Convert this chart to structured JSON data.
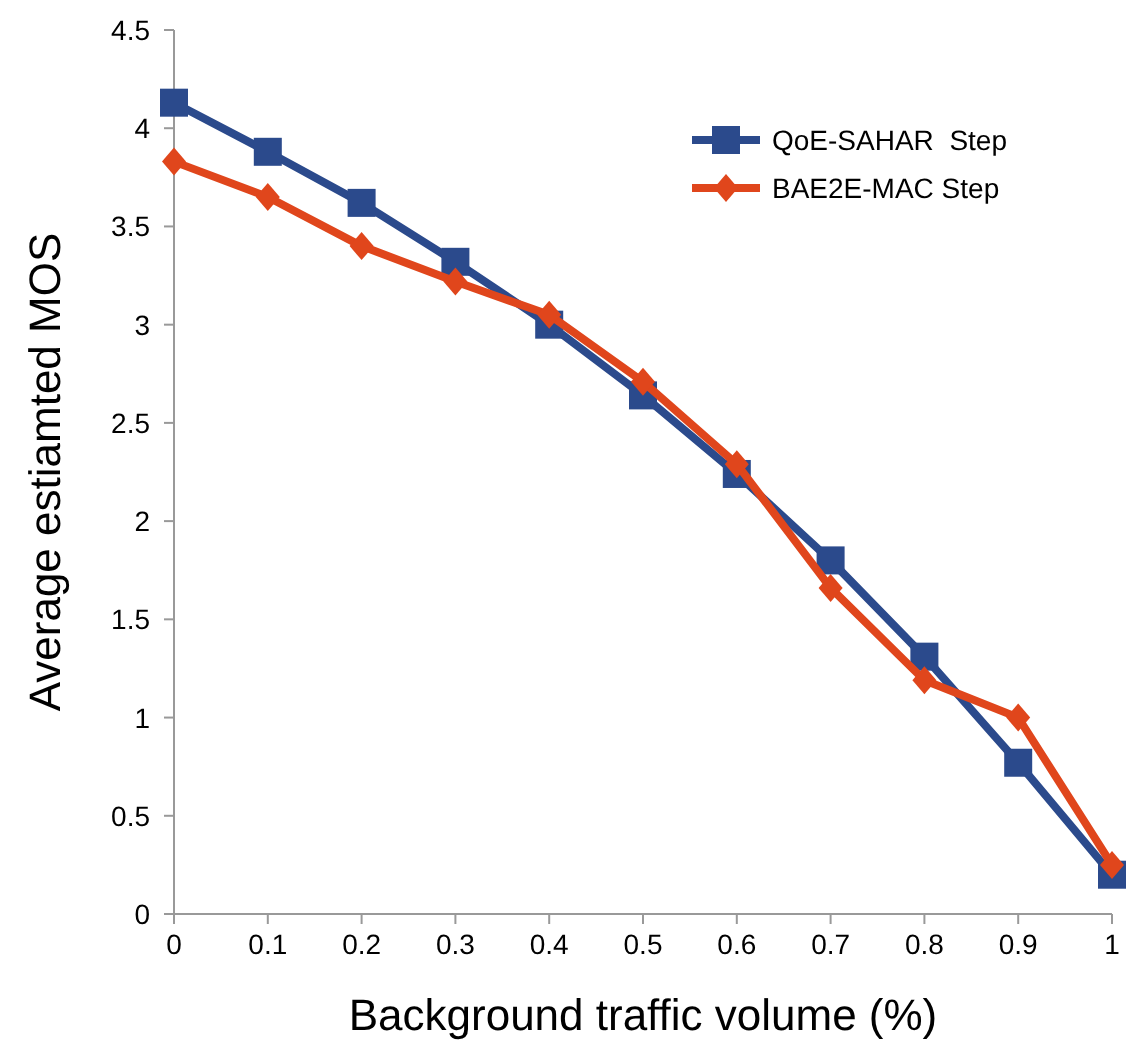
{
  "chart_data": {
    "type": "line",
    "xlabel": "Background traffic volume (%)",
    "ylabel": "Average estiamted MOS",
    "x": [
      0,
      0.1,
      0.2,
      0.3,
      0.4,
      0.5,
      0.6,
      0.7,
      0.8,
      0.9,
      1
    ],
    "series": [
      {
        "name": "QoE-SAHAR  Step",
        "color": "#2b4a8c",
        "marker": "square",
        "values": [
          4.13,
          3.88,
          3.62,
          3.32,
          3.0,
          2.64,
          2.24,
          1.8,
          1.31,
          0.77,
          0.2
        ]
      },
      {
        "name": "BAE2E-MAC Step",
        "color": "#e0461c",
        "marker": "diamond",
        "values": [
          3.83,
          3.65,
          3.4,
          3.22,
          3.05,
          2.71,
          2.29,
          1.66,
          1.19,
          1.0,
          0.25
        ]
      }
    ],
    "xlim": [
      0,
      1
    ],
    "xticks": [
      0,
      0.1,
      0.2,
      0.3,
      0.4,
      0.5,
      0.6,
      0.7,
      0.8,
      0.9,
      1
    ],
    "ylim": [
      0,
      4.5
    ],
    "yticks": [
      0,
      0.5,
      1,
      1.5,
      2,
      2.5,
      3,
      3.5,
      4,
      4.5
    ],
    "grid": false,
    "legend": "top right",
    "line_style": "solid"
  }
}
